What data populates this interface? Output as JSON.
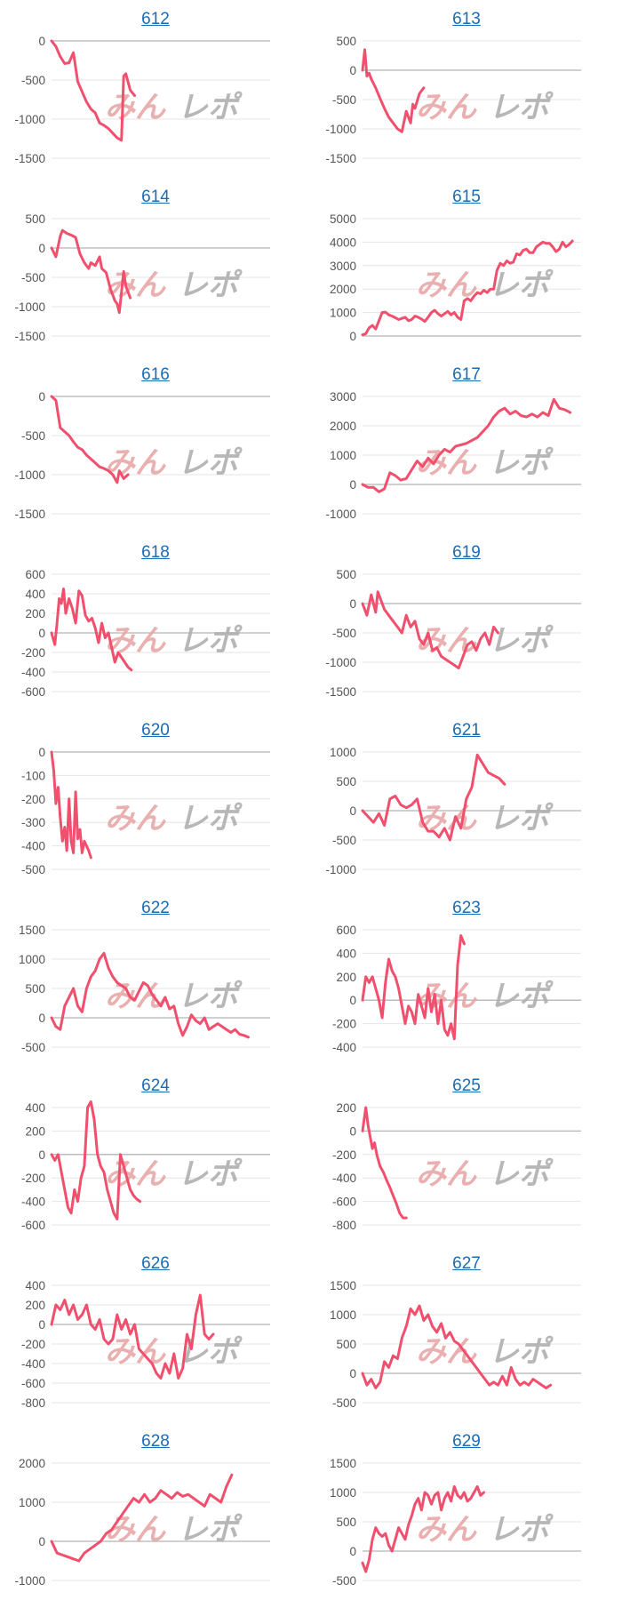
{
  "colors": {
    "line": "#f0506e",
    "grid": "#e6e6e6",
    "zero": "#b4b4b4",
    "tick_text": "#555555",
    "title_link": "#1a6bb3",
    "watermark_left": "#e8a7a7",
    "watermark_right": "#b0b0b0"
  },
  "watermark": {
    "left_text": "みん",
    "right_text": "レポ"
  },
  "chart_data": [
    {
      "type": "line",
      "title": "612",
      "ylim": [
        -1500,
        0
      ],
      "yticks": [
        "0",
        "-500",
        "-1000",
        "-1500"
      ],
      "grid": true,
      "x": [
        0,
        4,
        8,
        12,
        16,
        20,
        24,
        28,
        32,
        36,
        40,
        44,
        48,
        52,
        56,
        60,
        64,
        66,
        68,
        72,
        76
      ],
      "values": [
        0,
        -70,
        -200,
        -290,
        -280,
        -150,
        -520,
        -650,
        -780,
        -870,
        -920,
        -1050,
        -1080,
        -1120,
        -1180,
        -1240,
        -1270,
        -450,
        -420,
        -630,
        -700
      ]
    },
    {
      "type": "line",
      "title": "613",
      "ylim": [
        -1500,
        500
      ],
      "yticks": [
        "500",
        "0",
        "-500",
        "-1000",
        "-1500"
      ],
      "grid": true,
      "x": [
        0,
        2,
        4,
        6,
        8,
        12,
        16,
        20,
        24,
        28,
        32,
        36,
        40,
        44,
        46,
        48,
        52,
        56
      ],
      "values": [
        0,
        350,
        -100,
        -50,
        -150,
        -300,
        -480,
        -650,
        -800,
        -900,
        -1000,
        -1050,
        -700,
        -900,
        -580,
        -650,
        -400,
        -300
      ]
    },
    {
      "type": "line",
      "title": "614",
      "ylim": [
        -1500,
        500
      ],
      "yticks": [
        "500",
        "0",
        "-500",
        "-1000",
        "-1500"
      ],
      "grid": true,
      "x": [
        0,
        4,
        8,
        10,
        14,
        18,
        22,
        26,
        30,
        34,
        36,
        40,
        44,
        46,
        50,
        54,
        58,
        60,
        62,
        66,
        68,
        72
      ],
      "values": [
        0,
        -150,
        200,
        300,
        250,
        220,
        180,
        -100,
        -250,
        -350,
        -250,
        -300,
        -150,
        -350,
        -420,
        -700,
        -900,
        -950,
        -1100,
        -400,
        -650,
        -850
      ]
    },
    {
      "type": "line",
      "title": "615",
      "ylim": [
        0,
        5000
      ],
      "yticks": [
        "5000",
        "4000",
        "3000",
        "2000",
        "1000",
        "0"
      ],
      "grid": true,
      "x": [
        0,
        3,
        6,
        9,
        12,
        15,
        18,
        21,
        24,
        27,
        30,
        33,
        36,
        39,
        42,
        45,
        48,
        51,
        54,
        57,
        60,
        63,
        66,
        69,
        72,
        75,
        78,
        81,
        84,
        87,
        90,
        93,
        96,
        99,
        102,
        105,
        108,
        111,
        114,
        117,
        120,
        123,
        126,
        129,
        132,
        135,
        138,
        141,
        144,
        147,
        150,
        153,
        156,
        159,
        162,
        165,
        168,
        171,
        174,
        177,
        180,
        183,
        186,
        189,
        192
      ],
      "values": [
        50,
        100,
        350,
        450,
        300,
        650,
        1000,
        1020,
        900,
        850,
        780,
        700,
        750,
        800,
        650,
        700,
        850,
        800,
        720,
        620,
        800,
        1000,
        1100,
        950,
        850,
        950,
        1050,
        900,
        1000,
        800,
        700,
        1500,
        1600,
        1500,
        1700,
        1850,
        1800,
        1950,
        1850,
        2000,
        2000,
        2800,
        3100,
        3000,
        3200,
        3100,
        3150,
        3500,
        3450,
        3650,
        3700,
        3550,
        3550,
        3800,
        3900,
        4000,
        3950,
        3950,
        3800,
        3600,
        3700,
        4000,
        3800,
        3900,
        4050
      ]
    },
    {
      "type": "line",
      "title": "616",
      "ylim": [
        -1500,
        0
      ],
      "yticks": [
        "0",
        "-500",
        "-1000",
        "-1500"
      ],
      "grid": true,
      "x": [
        0,
        4,
        8,
        12,
        16,
        20,
        24,
        28,
        32,
        36,
        40,
        44,
        48,
        52,
        56,
        60,
        62,
        66,
        70
      ],
      "values": [
        0,
        -50,
        -400,
        -450,
        -500,
        -580,
        -650,
        -680,
        -750,
        -800,
        -850,
        -900,
        -920,
        -950,
        -1000,
        -1100,
        -950,
        -1050,
        -1000
      ]
    },
    {
      "type": "line",
      "title": "617",
      "ylim": [
        -1000,
        3000
      ],
      "yticks": [
        "3000",
        "2000",
        "1000",
        "0",
        "-1000"
      ],
      "grid": true,
      "x": [
        0,
        5,
        10,
        15,
        20,
        25,
        30,
        35,
        40,
        45,
        50,
        55,
        60,
        65,
        70,
        75,
        80,
        85,
        90,
        95,
        100,
        105,
        110,
        115,
        120,
        125,
        130,
        135,
        140,
        145,
        150,
        155,
        160,
        165,
        170,
        175,
        180,
        185,
        190
      ],
      "values": [
        0,
        -100,
        -100,
        -250,
        -150,
        400,
        300,
        150,
        200,
        500,
        800,
        600,
        900,
        700,
        1000,
        1200,
        1100,
        1300,
        1350,
        1400,
        1500,
        1600,
        1800,
        2000,
        2300,
        2500,
        2600,
        2400,
        2500,
        2350,
        2300,
        2400,
        2300,
        2450,
        2350,
        2900,
        2600,
        2550,
        2450
      ]
    },
    {
      "type": "line",
      "title": "618",
      "ylim": [
        -600,
        600
      ],
      "yticks": [
        "600",
        "400",
        "200",
        "0",
        "-200",
        "-400",
        "-600"
      ],
      "grid": true,
      "x": [
        0,
        3,
        5,
        7,
        9,
        11,
        13,
        16,
        19,
        22,
        25,
        28,
        31,
        34,
        37,
        40,
        43,
        46,
        49,
        52,
        55,
        58,
        61,
        64,
        67,
        70,
        73
      ],
      "values": [
        0,
        -120,
        100,
        350,
        300,
        450,
        200,
        350,
        250,
        100,
        430,
        380,
        180,
        120,
        150,
        50,
        -100,
        100,
        -50,
        0,
        -150,
        -300,
        -200,
        -250,
        -300,
        -350,
        -380
      ]
    },
    {
      "type": "line",
      "title": "619",
      "ylim": [
        -1500,
        500
      ],
      "yticks": [
        "500",
        "0",
        "-500",
        "-1000",
        "-1500"
      ],
      "grid": true,
      "x": [
        0,
        4,
        8,
        12,
        14,
        16,
        20,
        24,
        28,
        32,
        36,
        40,
        44,
        48,
        52,
        56,
        60,
        64,
        68,
        72,
        76,
        80,
        84,
        88,
        92,
        96,
        100,
        104,
        108,
        112,
        116,
        120,
        124
      ],
      "values": [
        0,
        -200,
        150,
        -150,
        200,
        100,
        -100,
        -200,
        -300,
        -400,
        -500,
        -200,
        -400,
        -300,
        -600,
        -700,
        -500,
        -800,
        -750,
        -900,
        -950,
        -1000,
        -1050,
        -1100,
        -900,
        -700,
        -650,
        -800,
        -600,
        -500,
        -700,
        -400,
        -500
      ]
    },
    {
      "type": "line",
      "title": "620",
      "ylim": [
        -500,
        0
      ],
      "yticks": [
        "0",
        "-100",
        "-200",
        "-300",
        "-400",
        "-500"
      ],
      "grid": true,
      "x": [
        0,
        2,
        4,
        6,
        8,
        10,
        12,
        14,
        16,
        18,
        20,
        22,
        24,
        26,
        28,
        30,
        32,
        34,
        36
      ],
      "values": [
        0,
        -80,
        -220,
        -150,
        -280,
        -380,
        -320,
        -420,
        -200,
        -380,
        -430,
        -170,
        -370,
        -330,
        -430,
        -380,
        -400,
        -420,
        -450
      ]
    },
    {
      "type": "line",
      "title": "621",
      "ylim": [
        -1000,
        1000
      ],
      "yticks": [
        "1000",
        "500",
        "0",
        "-500",
        "-1000"
      ],
      "grid": true,
      "x": [
        0,
        5,
        10,
        15,
        20,
        25,
        30,
        35,
        40,
        45,
        50,
        55,
        60,
        65,
        70,
        75,
        80,
        85,
        90,
        95,
        100,
        105,
        110,
        115,
        120,
        125,
        130
      ],
      "values": [
        0,
        -100,
        -200,
        -50,
        -250,
        200,
        250,
        100,
        50,
        100,
        200,
        -200,
        -350,
        -350,
        -450,
        -300,
        -500,
        -100,
        -300,
        200,
        400,
        950,
        800,
        650,
        600,
        550,
        450
      ]
    },
    {
      "type": "line",
      "title": "622",
      "ylim": [
        -500,
        1500
      ],
      "yticks": [
        "1500",
        "1000",
        "500",
        "0",
        "-500"
      ],
      "grid": true,
      "x": [
        0,
        4,
        8,
        12,
        16,
        20,
        24,
        28,
        32,
        36,
        40,
        44,
        48,
        52,
        56,
        60,
        64,
        68,
        72,
        76,
        80,
        84,
        88,
        92,
        96,
        100,
        104,
        108,
        112,
        116,
        120,
        124,
        128,
        132,
        136,
        140,
        144,
        148,
        152,
        156,
        160,
        164,
        168,
        172,
        176,
        180
      ],
      "values": [
        0,
        -150,
        -200,
        200,
        350,
        500,
        200,
        100,
        500,
        700,
        800,
        1000,
        1100,
        850,
        700,
        600,
        550,
        500,
        350,
        300,
        450,
        600,
        550,
        400,
        300,
        200,
        350,
        150,
        200,
        -100,
        -300,
        -150,
        50,
        -50,
        -100,
        0,
        -200,
        -150,
        -100,
        -150,
        -200,
        -250,
        -200,
        -280,
        -300,
        -330
      ]
    },
    {
      "type": "line",
      "title": "623",
      "ylim": [
        -400,
        600
      ],
      "yticks": [
        "600",
        "400",
        "200",
        "0",
        "-200",
        "-400"
      ],
      "grid": true,
      "x": [
        0,
        3,
        6,
        9,
        12,
        15,
        18,
        21,
        24,
        27,
        30,
        33,
        36,
        39,
        42,
        45,
        48,
        51,
        54,
        57,
        60,
        63,
        66,
        69,
        72,
        75,
        78,
        81,
        84,
        87,
        90,
        93
      ],
      "values": [
        0,
        200,
        150,
        200,
        100,
        0,
        -150,
        150,
        350,
        250,
        200,
        100,
        -50,
        -200,
        -50,
        -100,
        -200,
        50,
        -50,
        -150,
        100,
        -100,
        50,
        -200,
        0,
        -250,
        -300,
        -200,
        -330,
        300,
        550,
        480
      ]
    },
    {
      "type": "line",
      "title": "624",
      "ylim": [
        -600,
        400
      ],
      "yticks": [
        "400",
        "200",
        "0",
        "-200",
        "-400",
        "-600"
      ],
      "grid": true,
      "x": [
        0,
        3,
        6,
        9,
        12,
        15,
        18,
        21,
        24,
        27,
        30,
        33,
        36,
        39,
        42,
        45,
        48,
        51,
        54,
        57,
        60,
        63,
        66,
        69,
        72,
        75,
        78,
        81
      ],
      "values": [
        0,
        -50,
        0,
        -150,
        -300,
        -450,
        -500,
        -300,
        -400,
        -200,
        -100,
        400,
        450,
        300,
        0,
        -100,
        -150,
        -300,
        -400,
        -500,
        -550,
        0,
        -100,
        -200,
        -300,
        -350,
        -380,
        -400
      ]
    },
    {
      "type": "line",
      "title": "625",
      "ylim": [
        -800,
        200
      ],
      "yticks": [
        "200",
        "0",
        "-200",
        "-400",
        "-600",
        "-800"
      ],
      "grid": true,
      "x": [
        0,
        3,
        5,
        7,
        9,
        11,
        13,
        16,
        19,
        22,
        25,
        28,
        31,
        34,
        37,
        40
      ],
      "values": [
        0,
        200,
        50,
        -50,
        -150,
        -100,
        -200,
        -300,
        -350,
        -420,
        -480,
        -550,
        -620,
        -700,
        -740,
        -740
      ]
    },
    {
      "type": "line",
      "title": "626",
      "ylim": [
        -800,
        400
      ],
      "yticks": [
        "400",
        "200",
        "0",
        "-200",
        "-400",
        "-600",
        "-800"
      ],
      "grid": true,
      "x": [
        0,
        4,
        8,
        12,
        16,
        20,
        24,
        28,
        32,
        36,
        40,
        44,
        48,
        52,
        56,
        60,
        64,
        68,
        72,
        76,
        80,
        84,
        88,
        92,
        96,
        100,
        104,
        108,
        112,
        116,
        120,
        124,
        128,
        132,
        136,
        140,
        144,
        148
      ],
      "values": [
        0,
        200,
        150,
        250,
        100,
        200,
        50,
        100,
        200,
        0,
        -50,
        50,
        -150,
        -200,
        -150,
        100,
        -50,
        50,
        -100,
        0,
        -250,
        -300,
        -350,
        -400,
        -500,
        -550,
        -400,
        -500,
        -300,
        -550,
        -450,
        -100,
        -250,
        100,
        300,
        -100,
        -150,
        -100
      ]
    },
    {
      "type": "line",
      "title": "627",
      "ylim": [
        -500,
        1500
      ],
      "yticks": [
        "1500",
        "1000",
        "500",
        "0",
        "-500"
      ],
      "grid": true,
      "x": [
        0,
        4,
        8,
        12,
        16,
        20,
        24,
        28,
        32,
        36,
        40,
        44,
        48,
        52,
        56,
        60,
        64,
        68,
        72,
        76,
        80,
        84,
        88,
        92,
        96,
        100,
        104,
        108,
        112,
        116,
        120,
        124,
        128,
        132,
        136,
        140,
        144,
        148,
        152,
        156,
        160,
        164,
        168,
        172
      ],
      "values": [
        0,
        -200,
        -100,
        -250,
        -150,
        200,
        100,
        300,
        250,
        600,
        800,
        1100,
        1000,
        1150,
        900,
        1000,
        800,
        700,
        850,
        600,
        700,
        550,
        500,
        400,
        300,
        200,
        100,
        0,
        -100,
        -200,
        -150,
        -200,
        -50,
        -200,
        100,
        -100,
        -200,
        -150,
        -200,
        -100,
        -150,
        -200,
        -250,
        -200
      ]
    },
    {
      "type": "line",
      "title": "628",
      "ylim": [
        -1000,
        2000
      ],
      "yticks": [
        "2000",
        "1000",
        "0",
        "-1000"
      ],
      "grid": true,
      "x": [
        0,
        5,
        10,
        15,
        20,
        25,
        30,
        35,
        40,
        45,
        50,
        55,
        60,
        65,
        70,
        75,
        80,
        85,
        90,
        95,
        100,
        105,
        110,
        115,
        120,
        125,
        130,
        135,
        140,
        145,
        150,
        155,
        160,
        165
      ],
      "values": [
        0,
        -300,
        -350,
        -400,
        -450,
        -500,
        -300,
        -200,
        -100,
        0,
        200,
        300,
        500,
        700,
        900,
        1100,
        1000,
        1200,
        1000,
        1100,
        1300,
        1200,
        1100,
        1250,
        1150,
        1200,
        1100,
        1000,
        900,
        1200,
        1100,
        1000,
        1400,
        1700
      ]
    },
    {
      "type": "line",
      "title": "629",
      "ylim": [
        -500,
        1500
      ],
      "yticks": [
        "1500",
        "1000",
        "500",
        "0",
        "-500"
      ],
      "grid": true,
      "x": [
        0,
        3,
        6,
        9,
        12,
        15,
        18,
        21,
        24,
        27,
        30,
        33,
        36,
        39,
        42,
        45,
        48,
        51,
        54,
        57,
        60,
        63,
        66,
        69,
        72,
        75,
        78,
        81,
        84,
        87,
        90,
        93,
        96,
        99,
        102,
        105,
        108,
        111
      ],
      "values": [
        -200,
        -350,
        -150,
        200,
        400,
        300,
        250,
        300,
        100,
        0,
        200,
        400,
        300,
        200,
        450,
        600,
        800,
        900,
        700,
        1000,
        950,
        800,
        950,
        1000,
        700,
        900,
        1000,
        850,
        1100,
        950,
        900,
        1000,
        850,
        900,
        1000,
        1100,
        950,
        1000
      ]
    }
  ]
}
